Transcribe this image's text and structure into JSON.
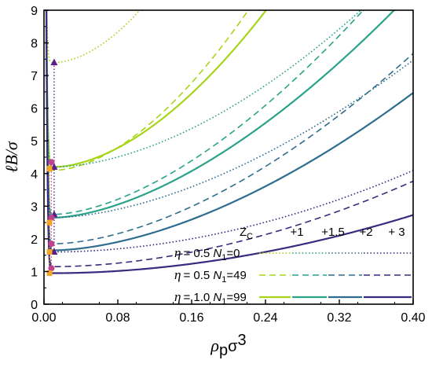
{
  "chart_data": {
    "type": "line",
    "xlabel": "ρpσ3",
    "xlabel_parts": {
      "main": "ρ",
      "sub": "p",
      "rest": "σ",
      "sup": "3"
    },
    "ylabel": "ℓB/σ",
    "xlim": [
      0,
      0.4
    ],
    "ylim": [
      0,
      9
    ],
    "x_ticks": [
      "0.00",
      "0.08",
      "0.16",
      "0.24",
      "0.32",
      "0.40"
    ],
    "x_tick_values": [
      0,
      0.08,
      0.16,
      0.24,
      0.32,
      0.4
    ],
    "y_ticks": [
      "0",
      "1",
      "2",
      "3",
      "4",
      "5",
      "6",
      "7",
      "8",
      "9"
    ],
    "y_tick_values": [
      0,
      1,
      2,
      3,
      4,
      5,
      6,
      7,
      8,
      9
    ],
    "grid": false,
    "legend_placement": "bottom-right",
    "legend": {
      "zc_label": "Z",
      "zc_sub": "C",
      "zc_values": [
        "+1",
        "+1.5",
        "+2",
        "+ 3"
      ],
      "rows": [
        {
          "eta": "= 0.5",
          "n_label": "N",
          "n_sub": "1",
          "n_value": "=0",
          "style": "dotted"
        },
        {
          "eta": "= 0.5",
          "n_label": "N",
          "n_sub": "1",
          "n_value": "=49",
          "style": "dashed"
        },
        {
          "eta": "= 1.0",
          "n_label": "N",
          "n_sub": "1",
          "n_value": "=99",
          "style": "solid"
        }
      ]
    },
    "colors": {
      "+1": "#a6d51a",
      "+1.5": "#2aa38a",
      "+2": "#2f6d8e",
      "+3": "#3b2a7e"
    },
    "series": [
      {
        "zc": "+1",
        "style": "dotted",
        "color": "#a6d51a",
        "min_x": 0.011,
        "min_y": 7.4,
        "k": 115,
        "p": 1.8
      },
      {
        "zc": "+1",
        "style": "dashed",
        "color": "#a6d51a",
        "min_x": 0.011,
        "min_y": 4.1,
        "k": 75,
        "p": 1.75
      },
      {
        "zc": "+1",
        "style": "solid",
        "color": "#a6d51a",
        "min_x": 0.011,
        "min_y": 4.2,
        "k": 63,
        "p": 1.75
      },
      {
        "zc": "+1.5",
        "style": "dotted",
        "color": "#2aa38a",
        "min_x": 0.011,
        "min_y": 4.2,
        "k": 33,
        "p": 1.75
      },
      {
        "zc": "+1.5",
        "style": "dashed",
        "color": "#2aa38a",
        "min_x": 0.011,
        "min_y": 2.75,
        "k": 38,
        "p": 1.65
      },
      {
        "zc": "+1.5",
        "style": "solid",
        "color": "#2aa38a",
        "min_x": 0.011,
        "min_y": 2.65,
        "k": 33,
        "p": 1.65
      },
      {
        "zc": "+2",
        "style": "dotted",
        "color": "#2f6d8e",
        "min_x": 0.011,
        "min_y": 2.65,
        "k": 24,
        "p": 1.7
      },
      {
        "zc": "+2",
        "style": "dashed",
        "color": "#2f6d8e",
        "min_x": 0.011,
        "min_y": 1.85,
        "k": 29,
        "p": 1.7
      },
      {
        "zc": "+2",
        "style": "solid",
        "color": "#2f6d8e",
        "min_x": 0.011,
        "min_y": 1.65,
        "k": 24,
        "p": 1.7
      },
      {
        "zc": "+3",
        "style": "dotted",
        "color": "#3b2a7e",
        "min_x": 0.011,
        "min_y": 1.6,
        "k": 15,
        "p": 1.9
      },
      {
        "zc": "+3",
        "style": "dashed",
        "color": "#3b2a7e",
        "min_x": 0.011,
        "min_y": 1.15,
        "k": 15,
        "p": 1.85
      },
      {
        "zc": "+3",
        "style": "solid",
        "color": "#3b2a7e",
        "min_x": 0.011,
        "min_y": 0.95,
        "k": 10.7,
        "p": 1.9
      }
    ],
    "markers": [
      {
        "x": 0.011,
        "y": 7.4,
        "shape": "triangle",
        "color": "#5b1f8c"
      },
      {
        "x": 0.011,
        "y": 4.2,
        "shape": "triangle",
        "color": "#5b1f8c"
      },
      {
        "x": 0.011,
        "y": 2.75,
        "shape": "triangle",
        "color": "#5b1f8c"
      },
      {
        "x": 0.011,
        "y": 1.6,
        "shape": "triangle",
        "color": "#5b1f8c"
      },
      {
        "x": 0.008,
        "y": 4.35,
        "shape": "circle",
        "color": "#c0428a"
      },
      {
        "x": 0.008,
        "y": 2.65,
        "shape": "circle",
        "color": "#c0428a"
      },
      {
        "x": 0.008,
        "y": 1.85,
        "shape": "circle",
        "color": "#c0428a"
      },
      {
        "x": 0.008,
        "y": 1.1,
        "shape": "circle",
        "color": "#c0428a"
      },
      {
        "x": 0.006,
        "y": 4.15,
        "shape": "square",
        "color": "#f5a623"
      },
      {
        "x": 0.006,
        "y": 2.5,
        "shape": "square",
        "color": "#f5a623"
      },
      {
        "x": 0.006,
        "y": 1.6,
        "shape": "square",
        "color": "#f5a623"
      },
      {
        "x": 0.006,
        "y": 0.95,
        "shape": "square",
        "color": "#f5a623"
      }
    ]
  }
}
